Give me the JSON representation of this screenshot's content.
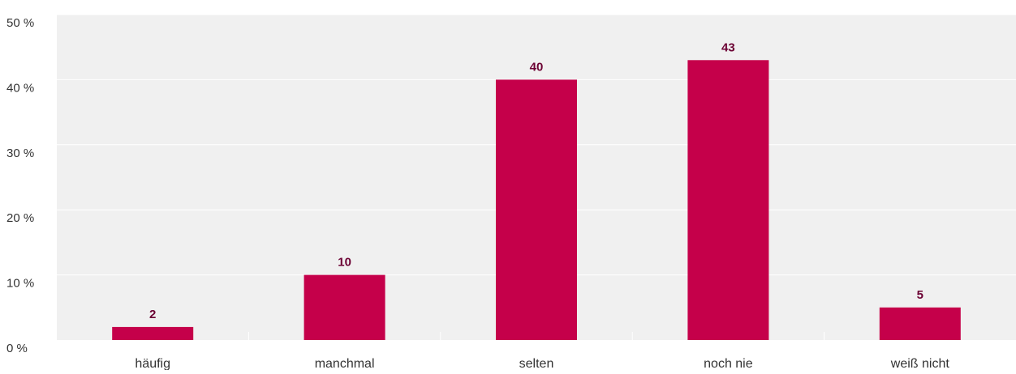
{
  "chart_data": {
    "type": "bar",
    "categories": [
      "häufig",
      "manchmal",
      "selten",
      "noch nie",
      "weiß nicht"
    ],
    "values": [
      2,
      10,
      40,
      43,
      5
    ],
    "value_labels": [
      "2",
      "10",
      "40",
      "43",
      "5"
    ],
    "yticks": [
      0,
      10,
      20,
      30,
      40,
      50
    ],
    "ytick_labels": [
      "0 %",
      "10 %",
      "20 %",
      "30 %",
      "40 %",
      "50 %"
    ],
    "ylim": [
      0,
      50
    ],
    "title": "",
    "xlabel": "",
    "ylabel": "",
    "grid": true,
    "legend": "none",
    "colors": {
      "bar": "#c5004a",
      "value_label": "#6b0033",
      "plot_background": "#f0f0f0",
      "gridline": "#ffffff",
      "text": "#333333"
    }
  }
}
